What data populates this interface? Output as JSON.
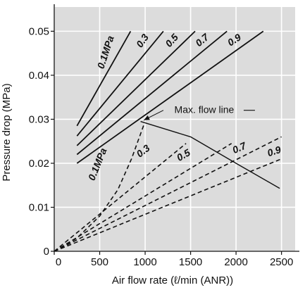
{
  "chart_data": {
    "type": "line",
    "xlabel": "Air flow rate (ℓ/min (ANR))",
    "ylabel": "Pressure drop (MPa)",
    "xlim": [
      0,
      2650
    ],
    "ylim": [
      0,
      0.0555
    ],
    "x_ticks": [
      "0",
      "500",
      "1000",
      "1500",
      "2000",
      "2500"
    ],
    "y_ticks": [
      "0",
      "0.01",
      "0.02",
      "0.03",
      "0.04",
      "0.05"
    ],
    "grid": true,
    "background": "#dcdcdc",
    "line_color": "#111111",
    "series": [
      {
        "name": "0.1MPa",
        "style": "solid",
        "points": [
          [
            250,
            0.0285
          ],
          [
            840,
            0.05
          ]
        ]
      },
      {
        "name": "0.3",
        "style": "solid",
        "points": [
          [
            250,
            0.0262
          ],
          [
            1200,
            0.05
          ]
        ]
      },
      {
        "name": "0.5",
        "style": "solid",
        "points": [
          [
            250,
            0.024
          ],
          [
            1550,
            0.05
          ]
        ]
      },
      {
        "name": "0.7",
        "style": "solid",
        "points": [
          [
            250,
            0.022
          ],
          [
            1900,
            0.05
          ]
        ]
      },
      {
        "name": "0.9",
        "style": "solid",
        "points": [
          [
            250,
            0.02
          ],
          [
            2300,
            0.05
          ]
        ]
      },
      {
        "name": "0.1MPa",
        "style": "dashed",
        "points": [
          [
            0,
            0
          ],
          [
            250,
            0.003
          ],
          [
            500,
            0.008
          ],
          [
            700,
            0.014
          ],
          [
            850,
            0.021
          ],
          [
            990,
            0.029
          ]
        ]
      },
      {
        "name": "0.3",
        "style": "dashed",
        "points": [
          [
            0,
            0
          ],
          [
            1450,
            0.0245
          ]
        ]
      },
      {
        "name": "0.5",
        "style": "dashed",
        "points": [
          [
            0,
            0
          ],
          [
            1950,
            0.0245
          ]
        ]
      },
      {
        "name": "0.7",
        "style": "dashed",
        "points": [
          [
            0,
            0
          ],
          [
            2500,
            0.026
          ]
        ]
      },
      {
        "name": "0.9",
        "style": "dashed",
        "points": [
          [
            0,
            0
          ],
          [
            2500,
            0.021
          ]
        ]
      },
      {
        "name": "Max. flow line",
        "style": "solid",
        "points": [
          [
            950,
            0.0295
          ],
          [
            1500,
            0.026
          ],
          [
            2000,
            0.02
          ],
          [
            2480,
            0.0143
          ]
        ]
      }
    ],
    "labels": [
      {
        "text": "0.1MPa",
        "x": 600,
        "y": 0.045,
        "angle": -72
      },
      {
        "text": "0.3",
        "x": 1000,
        "y": 0.0474,
        "angle": -55
      },
      {
        "text": "0.5",
        "x": 1320,
        "y": 0.0474,
        "angle": -48
      },
      {
        "text": "0.7",
        "x": 1650,
        "y": 0.0474,
        "angle": -40
      },
      {
        "text": "0.9",
        "x": 2000,
        "y": 0.0474,
        "angle": -33
      },
      {
        "text": "0.1MPa",
        "x": 510,
        "y": 0.0195,
        "angle": -68
      },
      {
        "text": "0.3",
        "x": 1000,
        "y": 0.0222,
        "angle": -38
      },
      {
        "text": "0.5",
        "x": 1440,
        "y": 0.0212,
        "angle": -30
      },
      {
        "text": "0.7",
        "x": 2050,
        "y": 0.0228,
        "angle": -24
      },
      {
        "text": "0.9",
        "x": 2430,
        "y": 0.022,
        "angle": -18
      }
    ],
    "annotation": {
      "text": "Max. flow line",
      "label_x": 1650,
      "label_y": 0.0314,
      "arrow_to_x": 985,
      "arrow_to_y": 0.0298
    }
  }
}
